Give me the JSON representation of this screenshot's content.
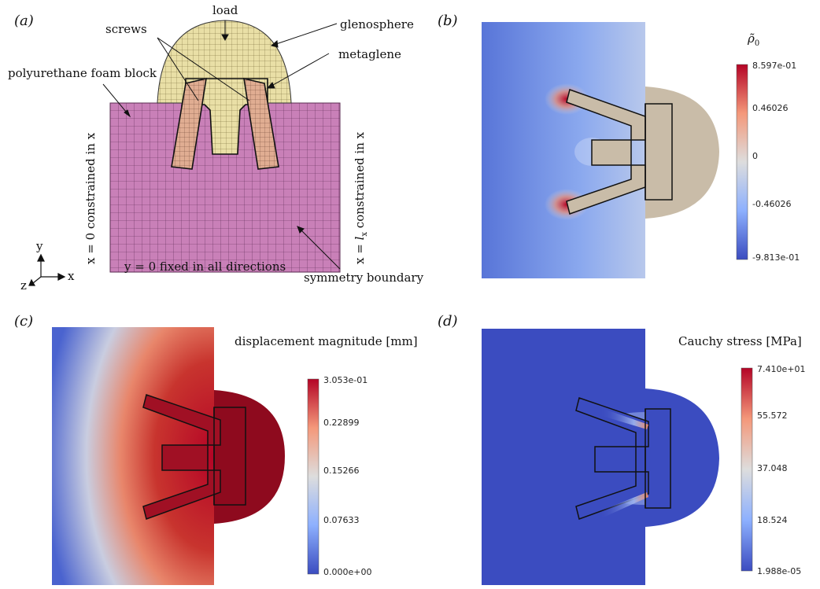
{
  "panels": {
    "a": {
      "label": "(a)",
      "callouts": {
        "load": "load",
        "glenosphere": "glenosphere",
        "screws": "screws",
        "metaglene": "metaglene",
        "foam": "polyurethane foam block",
        "symmetry": "symmetry boundary"
      },
      "bc": {
        "left": "x = 0 constrained in x",
        "right_pre": "x = ",
        "right_var": "l",
        "right_sub": "x",
        "right_post": " constrained in x",
        "bottom": "y  = 0 fixed in all directions"
      },
      "axes": {
        "y": "y",
        "z": "z",
        "x": "x"
      }
    },
    "b": {
      "label": "(b)",
      "colorbar_title": "ρ̃",
      "colorbar_sub": "0",
      "ticks": [
        "8.597e-01",
        "0.46026",
        "0",
        "-0.46026",
        "-9.813e-01"
      ]
    },
    "c": {
      "label": "(c)",
      "colorbar_title": "displacement magnitude [mm]",
      "ticks": [
        "3.053e-01",
        "0.22899",
        "0.15266",
        "0.07633",
        "0.000e+00"
      ]
    },
    "d": {
      "label": "(d)",
      "colorbar_title": "Cauchy stress [MPa]",
      "ticks": [
        "7.410e+01",
        "55.572",
        "37.048",
        "18.524",
        "1.988e-05"
      ]
    }
  },
  "colors": {
    "foam": "#c980b8",
    "foam_grid": "#5a2b52",
    "glenosphere": "#e9dfa6",
    "screw": "#e0ad92",
    "field_blue": "#3b4cc0",
    "field_red": "#b40426",
    "neutral": "#dddddd"
  }
}
